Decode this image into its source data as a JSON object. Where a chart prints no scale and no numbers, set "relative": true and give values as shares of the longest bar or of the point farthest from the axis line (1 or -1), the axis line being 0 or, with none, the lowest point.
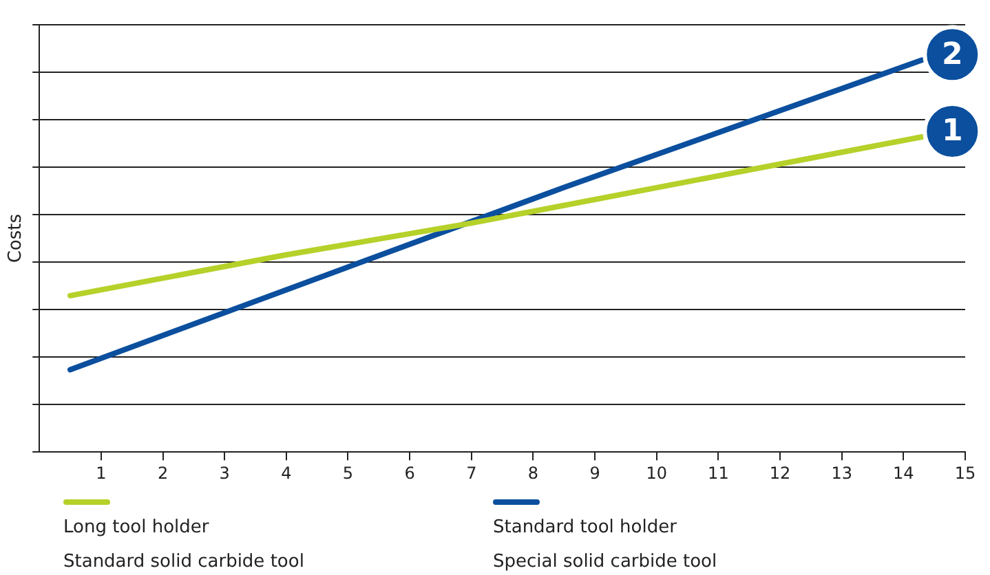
{
  "chart_data": {
    "type": "line",
    "ylabel": "Costs",
    "relative": true,
    "xlim": [
      0,
      15
    ],
    "xticks": [
      1,
      2,
      3,
      4,
      5,
      6,
      7,
      8,
      9,
      10,
      11,
      12,
      13,
      14,
      15
    ],
    "grid": "y",
    "legend": "bottom",
    "marker": "none",
    "line_style": "solid",
    "series": [
      {
        "name": "Long tool holder\nStandard solid carbide tool",
        "color": "#b5d12a",
        "x": [
          0.5,
          4,
          7,
          14.3
        ],
        "values": [
          0.399,
          0.503,
          0.584,
          0.804
        ]
      },
      {
        "name": "Standard tool holder\nSpecial solid carbide tool",
        "color": "#0b4f9e",
        "x": [
          0.5,
          5,
          8.5,
          14.3
        ],
        "values": [
          0.21,
          0.472,
          0.675,
          1
        ]
      }
    ],
    "annotations": [
      {
        "text": "1",
        "x": 14.3,
        "y": 0.804
      },
      {
        "text": "2",
        "x": 14.3,
        "y": 1
      }
    ]
  }
}
